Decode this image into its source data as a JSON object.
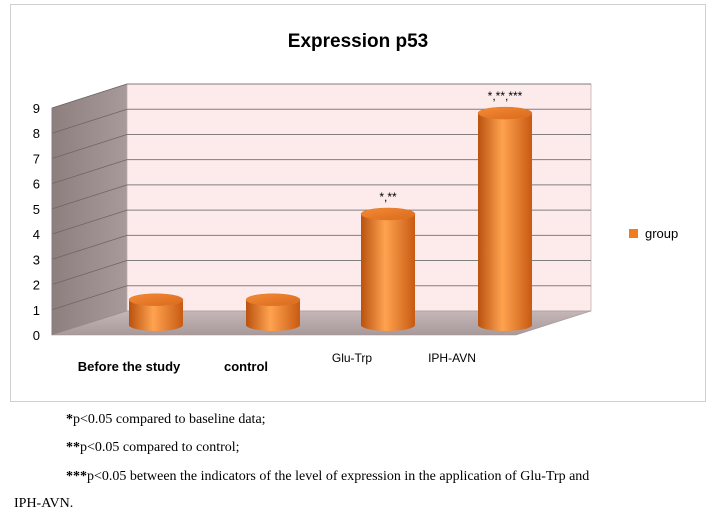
{
  "chart_data": {
    "type": "bar",
    "title": "Expression p53",
    "categories": [
      "Before the study",
      "control",
      "Glu-Trp",
      "IPH-AVN"
    ],
    "series": [
      {
        "name": "group",
        "values": [
          1.0,
          1.0,
          4.4,
          8.4
        ],
        "color": "#f07c22"
      }
    ],
    "significance_labels": [
      "",
      "",
      "*,**",
      "*,**,***"
    ],
    "ylim": [
      0,
      9
    ],
    "yticks": [
      "0",
      "1",
      "2",
      "3",
      "4",
      "5",
      "6",
      "7",
      "8",
      "9"
    ],
    "grid": true,
    "legend_position": "right",
    "style": "3d-cylinder"
  },
  "notes": [
    {
      "mark": "*",
      "text": "p<0.05 compared to baseline data;"
    },
    {
      "mark": "**",
      "text": "p<0.05 compared to control;"
    },
    {
      "mark": "***",
      "text": "p<0.05 between the indicators of the level of expression in the application of Glu-Trp and",
      "continuation": "IPH-AVN."
    }
  ]
}
